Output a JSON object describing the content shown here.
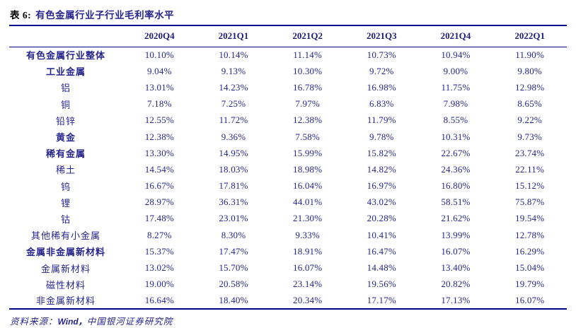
{
  "title": {
    "prefix": "表 6:",
    "text": "有色金属行业子行业毛利率水平"
  },
  "colors": {
    "text_navy": "#26268C",
    "rule_navy": "#00008B",
    "title_prefix_black": "#000000"
  },
  "table": {
    "columns": [
      "2020Q4",
      "2021Q1",
      "2021Q2",
      "2021Q3",
      "2021Q4",
      "2022Q1"
    ],
    "rows": [
      {
        "label": "有色金属行业整体",
        "bold": true,
        "values": [
          "10.10%",
          "10.14%",
          "11.14%",
          "10.73%",
          "10.94%",
          "11.90%"
        ]
      },
      {
        "label": "工业金属",
        "bold": true,
        "values": [
          "9.04%",
          "9.13%",
          "10.30%",
          "9.72%",
          "9.00%",
          "9.80%"
        ]
      },
      {
        "label": "铝",
        "bold": false,
        "values": [
          "13.01%",
          "14.23%",
          "16.78%",
          "16.98%",
          "11.75%",
          "12.98%"
        ]
      },
      {
        "label": "铜",
        "bold": false,
        "values": [
          "7.18%",
          "7.25%",
          "7.97%",
          "6.83%",
          "7.98%",
          "8.65%"
        ]
      },
      {
        "label": "铅锌",
        "bold": false,
        "values": [
          "12.55%",
          "11.72%",
          "12.38%",
          "11.79%",
          "8.55%",
          "9.22%"
        ]
      },
      {
        "label": "黄金",
        "bold": true,
        "values": [
          "12.38%",
          "9.36%",
          "7.58%",
          "9.78%",
          "10.31%",
          "9.73%"
        ]
      },
      {
        "label": "稀有金属",
        "bold": true,
        "values": [
          "13.30%",
          "14.95%",
          "15.99%",
          "15.82%",
          "22.67%",
          "23.74%"
        ]
      },
      {
        "label": "稀土",
        "bold": false,
        "values": [
          "14.54%",
          "18.03%",
          "18.98%",
          "14.82%",
          "24.36%",
          "22.11%"
        ]
      },
      {
        "label": "钨",
        "bold": false,
        "values": [
          "16.67%",
          "17.81%",
          "16.04%",
          "16.97%",
          "16.80%",
          "15.12%"
        ]
      },
      {
        "label": "锂",
        "bold": false,
        "values": [
          "28.97%",
          "36.31%",
          "44.01%",
          "43.02%",
          "58.51%",
          "75.87%"
        ]
      },
      {
        "label": "钴",
        "bold": false,
        "values": [
          "17.48%",
          "23.01%",
          "21.30%",
          "20.28%",
          "21.62%",
          "19.54%"
        ]
      },
      {
        "label": "其他稀有小金属",
        "bold": false,
        "values": [
          "8.27%",
          "8.30%",
          "9.33%",
          "10.41%",
          "13.99%",
          "12.78%"
        ]
      },
      {
        "label": "金属非金属新材料",
        "bold": true,
        "values": [
          "15.37%",
          "17.47%",
          "18.91%",
          "16.47%",
          "16.07%",
          "16.29%"
        ]
      },
      {
        "label": "金属新材料",
        "bold": false,
        "values": [
          "13.02%",
          "15.70%",
          "16.07%",
          "14.48%",
          "13.40%",
          "15.04%"
        ]
      },
      {
        "label": "磁性材料",
        "bold": false,
        "values": [
          "19.00%",
          "20.58%",
          "23.14%",
          "19.56%",
          "20.82%",
          "19.79%"
        ]
      },
      {
        "label": "非金属新材料",
        "bold": false,
        "values": [
          "16.64%",
          "18.40%",
          "20.34%",
          "17.17%",
          "17.13%",
          "16.07%"
        ]
      }
    ]
  },
  "footer": {
    "label": "资料来源：",
    "source": "Wind，",
    "org": "中国银河证券研究院"
  }
}
